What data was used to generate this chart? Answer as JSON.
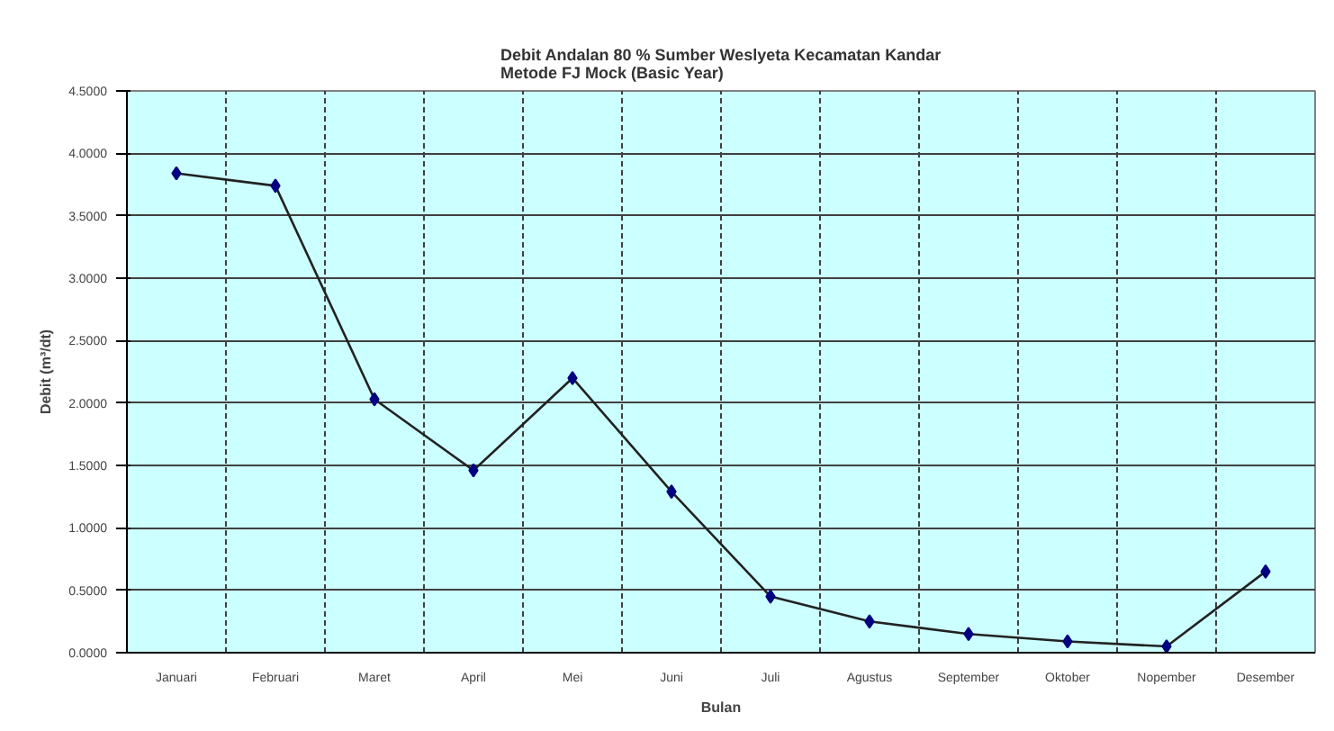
{
  "chart_data": {
    "type": "line",
    "title": "Debit Andalan 80 % Sumber Weslyeta Kecamatan Kandar\nMetode FJ Mock (Basic Year)",
    "xlabel": "Bulan",
    "ylabel": "Debit (m³/dt)",
    "categories": [
      "Januari",
      "Februari",
      "Maret",
      "April",
      "Mei",
      "Juni",
      "Juli",
      "Agustus",
      "September",
      "Oktober",
      "Nopember",
      "Desember"
    ],
    "series": [
      {
        "color": "#000080",
        "values": [
          3.84,
          3.74,
          2.03,
          1.46,
          2.2,
          1.29,
          0.45,
          0.25,
          0.15,
          0.09,
          0.05,
          0.65
        ]
      }
    ],
    "ylim": [
      0,
      4.5
    ],
    "yticks": [
      {
        "value": 0,
        "label": "0.0000"
      },
      {
        "value": 0.5,
        "label": "0.5000"
      },
      {
        "value": 1,
        "label": "1.0000"
      },
      {
        "value": 1.5,
        "label": "1.5000"
      },
      {
        "value": 2,
        "label": "2.0000"
      },
      {
        "value": 2.5,
        "label": "2.5000"
      },
      {
        "value": 3,
        "label": "3.0000"
      },
      {
        "value": 3.5,
        "label": "3.5000"
      },
      {
        "value": 4,
        "label": "4.0000"
      },
      {
        "value": 4.5,
        "label": "4.5000"
      }
    ],
    "grid": true,
    "marker": "diamond",
    "line_style": "solid"
  }
}
